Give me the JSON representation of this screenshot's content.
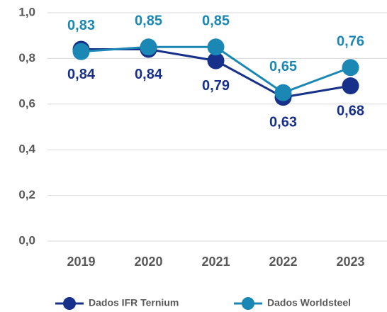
{
  "chart_data": {
    "type": "line",
    "categories": [
      "2019",
      "2020",
      "2021",
      "2022",
      "2023"
    ],
    "series": [
      {
        "name": "Dados IFR Ternium",
        "color": "#17318a",
        "values": [
          0.84,
          0.84,
          0.79,
          0.63,
          0.68
        ],
        "value_labels": [
          "0,84",
          "0,84",
          "0,79",
          "0,63",
          "0,68"
        ]
      },
      {
        "name": "Dados Worldsteel",
        "color": "#1b87b4",
        "values": [
          0.83,
          0.85,
          0.85,
          0.65,
          0.76
        ],
        "value_labels": [
          "0,83",
          "0,85",
          "0,85",
          "0,65",
          "0,76"
        ]
      }
    ],
    "ylim": [
      0,
      1.0
    ],
    "yticks": [
      {
        "value": 0,
        "label": "0,0"
      },
      {
        "value": 0.2,
        "label": "0,2"
      },
      {
        "value": 0.4,
        "label": "0,4"
      },
      {
        "value": 0.6,
        "label": "0,6"
      },
      {
        "value": 0.8,
        "label": "0,8"
      },
      {
        "value": 1.0,
        "label": "1,0"
      }
    ],
    "grid": true,
    "legend": "bottom"
  }
}
